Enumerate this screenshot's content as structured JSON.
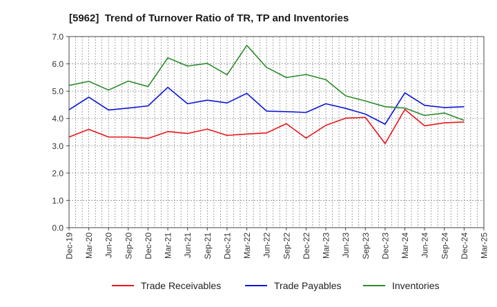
{
  "chart_data": {
    "type": "line",
    "title": "[5962]  Trend of Turnover Ratio of TR, TP and Inventories",
    "xlabel": "",
    "ylabel": "",
    "ylim": [
      0,
      7
    ],
    "yticks": [
      "0.0",
      "1.0",
      "2.0",
      "3.0",
      "4.0",
      "5.0",
      "6.0",
      "7.0"
    ],
    "grid": true,
    "legend_position": "bottom",
    "x_tick_labels": [
      "Dec-19",
      "Mar-20",
      "Jun-20",
      "Sep-20",
      "Dec-20",
      "Mar-21",
      "Jun-21",
      "Sep-21",
      "Dec-21",
      "Mar-22",
      "Jun-22",
      "Sep-22",
      "Dec-22",
      "Mar-23",
      "Jun-23",
      "Sep-23",
      "Dec-23",
      "Mar-24",
      "Jun-24",
      "Sep-24",
      "Dec-24",
      "Mar-25"
    ],
    "categories": [
      "Dec-19",
      "Mar-20",
      "Jun-20",
      "Sep-20",
      "Dec-20",
      "Mar-21",
      "Jun-21",
      "Sep-21",
      "Dec-21",
      "Mar-22",
      "Jun-22",
      "Sep-22",
      "Dec-22",
      "Mar-23",
      "Jun-23",
      "Sep-23",
      "Dec-23",
      "Mar-24",
      "Jun-24",
      "Sep-24",
      "Dec-24"
    ],
    "series": [
      {
        "name": "Trade Receivables",
        "color": "#e8141a",
        "values": [
          3.32,
          3.6,
          3.32,
          3.32,
          3.27,
          3.52,
          3.45,
          3.61,
          3.38,
          3.43,
          3.47,
          3.81,
          3.28,
          3.75,
          4.01,
          4.04,
          3.08,
          4.33,
          3.73,
          3.84,
          3.87
        ]
      },
      {
        "name": "Trade Payables",
        "color": "#0a14d8",
        "values": [
          4.32,
          4.78,
          4.31,
          4.38,
          4.46,
          5.14,
          4.54,
          4.67,
          4.57,
          4.92,
          4.27,
          4.25,
          4.22,
          4.54,
          4.37,
          4.16,
          3.79,
          4.94,
          4.48,
          4.4,
          4.43
        ]
      },
      {
        "name": "Inventories",
        "color": "#2a8a2a",
        "values": [
          5.21,
          5.36,
          5.04,
          5.37,
          5.17,
          6.22,
          5.92,
          6.02,
          5.6,
          6.68,
          5.87,
          5.5,
          5.61,
          5.42,
          4.83,
          4.64,
          4.43,
          4.38,
          4.11,
          4.2,
          3.93
        ]
      }
    ]
  }
}
